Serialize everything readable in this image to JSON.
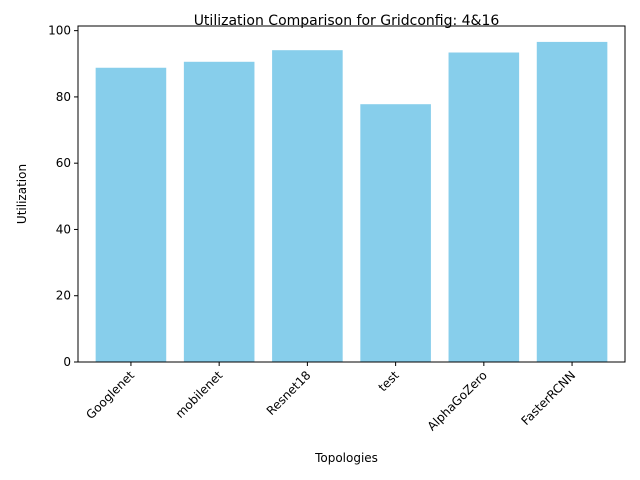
{
  "chart_data": {
    "type": "bar",
    "title": "Utilization Comparison for Gridconfig: 4&16",
    "xlabel": "Topologies",
    "ylabel": "Utilization",
    "categories": [
      "Googlenet",
      "mobilenet",
      "Resnet18",
      "test",
      "AlphaGoZero",
      "FasterRCNN"
    ],
    "values": [
      88.8,
      90.6,
      94.1,
      77.8,
      93.4,
      96.6
    ],
    "ylim": [
      0,
      101.4
    ],
    "yticks": [
      0,
      20,
      40,
      60,
      80,
      100
    ],
    "bar_color": "#87ceeb",
    "grid": false,
    "legend": "none"
  }
}
